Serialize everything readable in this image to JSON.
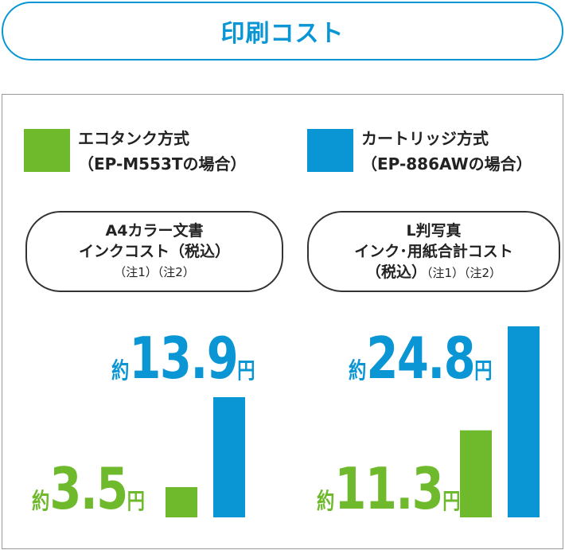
{
  "title": "印刷コスト",
  "legend": [
    {
      "line1": "エコタンク方式",
      "line2": "（EP-M553Tの場合）",
      "color": "#6fb92c"
    },
    {
      "line1": "カートリッジ方式",
      "line2": "（EP-886AWの場合）",
      "color": "#0a96d4"
    }
  ],
  "chart_data": [
    {
      "type": "bar",
      "title_lines": [
        "A4カラー文書",
        "インクコスト（税込）"
      ],
      "note": "（注1）（注2）",
      "categories": [
        "エコタンク方式",
        "カートリッジ方式"
      ],
      "values": [
        3.5,
        13.9
      ],
      "labels": [
        {
          "prefix": "約",
          "num": "3.5",
          "unit": "円"
        },
        {
          "prefix": "約",
          "num": "13.9",
          "unit": "円"
        }
      ]
    },
    {
      "type": "bar",
      "title_lines": [
        "L判写真",
        "インク･用紙合計コスト"
      ],
      "title_line3": "（税込）",
      "note": "（注1）（注2）",
      "categories": [
        "エコタンク方式",
        "カートリッジ方式"
      ],
      "values": [
        11.3,
        24.8
      ],
      "labels": [
        {
          "prefix": "約",
          "num": "11.3",
          "unit": "円"
        },
        {
          "prefix": "約",
          "num": "24.8",
          "unit": "円"
        }
      ]
    }
  ]
}
